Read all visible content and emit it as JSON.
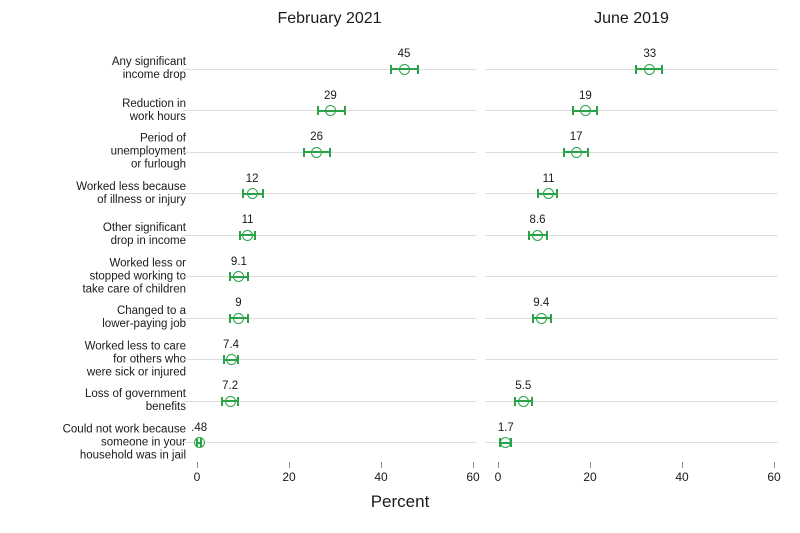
{
  "chart_data": {
    "type": "scatter",
    "subtype": "dot-plot-with-error-bars",
    "xlabel": "Percent",
    "xlim": [
      0,
      60
    ],
    "xticks": [
      0,
      20,
      40,
      60
    ],
    "grid": true,
    "legend_position": "none",
    "marker_style": "open-circle-with-ci-caps",
    "colors": {
      "marker": "#2aa348",
      "gridline": "#dedede",
      "text": "#1a1a1a",
      "axis_tick": "#8a8a8a"
    },
    "categories": [
      {
        "id": "any-significant-income-drop",
        "lines": [
          "Any significant",
          "income drop"
        ]
      },
      {
        "id": "reduction-in-work-hours",
        "lines": [
          "Reduction in",
          "work hours"
        ]
      },
      {
        "id": "period-of-unemployment-or-furlough",
        "lines": [
          "Period of",
          "unemployment",
          "or furlough"
        ]
      },
      {
        "id": "worked-less-illness-or-injury",
        "lines": [
          "Worked less because",
          "of illness or injury"
        ]
      },
      {
        "id": "other-significant-drop-in-income",
        "lines": [
          "Other significant",
          "drop in income"
        ]
      },
      {
        "id": "worked-less-take-care-of-children",
        "lines": [
          "Worked less or",
          "stopped working to",
          "take care of children"
        ]
      },
      {
        "id": "changed-to-lower-paying-job",
        "lines": [
          "Changed to a",
          "lower-paying job"
        ]
      },
      {
        "id": "worked-less-care-for-others",
        "lines": [
          "Worked less to care",
          "for others who",
          "were sick or injured"
        ]
      },
      {
        "id": "loss-of-government-benefits",
        "lines": [
          "Loss of government",
          "benefits"
        ]
      },
      {
        "id": "could-not-work-household-jail",
        "lines": [
          "Could not work because",
          "someone in your",
          "household was in jail"
        ]
      }
    ],
    "panels": [
      {
        "title": "February 2021",
        "points": [
          {
            "value": 45,
            "label": "45",
            "ci_low": 42.2,
            "ci_high": 48.0
          },
          {
            "value": 29,
            "label": "29",
            "ci_low": 26.2,
            "ci_high": 32.1
          },
          {
            "value": 26,
            "label": "26",
            "ci_low": 23.2,
            "ci_high": 28.9
          },
          {
            "value": 12,
            "label": "12",
            "ci_low": 9.9,
            "ci_high": 14.3
          },
          {
            "value": 11,
            "label": "11",
            "ci_low": 9.4,
            "ci_high": 12.7
          },
          {
            "value": 9.1,
            "label": "9.1",
            "ci_low": 7.2,
            "ci_high": 11.1
          },
          {
            "value": 9,
            "label": "9",
            "ci_low": 7.1,
            "ci_high": 11.0
          },
          {
            "value": 7.4,
            "label": "7.4",
            "ci_low": 5.8,
            "ci_high": 8.9
          },
          {
            "value": 7.2,
            "label": "7.2",
            "ci_low": 5.5,
            "ci_high": 8.9
          },
          {
            "value": 0.48,
            "label": ".48",
            "ci_low": 0.1,
            "ci_high": 0.9
          }
        ]
      },
      {
        "title": "June 2019",
        "points": [
          {
            "value": 33,
            "label": "33",
            "ci_low": 30.1,
            "ci_high": 35.7
          },
          {
            "value": 19,
            "label": "19",
            "ci_low": 16.2,
            "ci_high": 21.5
          },
          {
            "value": 17,
            "label": "17",
            "ci_low": 14.4,
            "ci_high": 19.6
          },
          {
            "value": 11,
            "label": "11",
            "ci_low": 8.8,
            "ci_high": 12.8
          },
          {
            "value": 8.6,
            "label": "8.6",
            "ci_low": 6.8,
            "ci_high": 10.6
          },
          null,
          {
            "value": 9.4,
            "label": "9.4",
            "ci_low": 7.5,
            "ci_high": 11.5
          },
          null,
          {
            "value": 5.5,
            "label": "5.5",
            "ci_low": 3.8,
            "ci_high": 7.4
          },
          {
            "value": 1.7,
            "label": "1.7",
            "ci_low": 0.5,
            "ci_high": 2.8
          }
        ]
      }
    ]
  }
}
